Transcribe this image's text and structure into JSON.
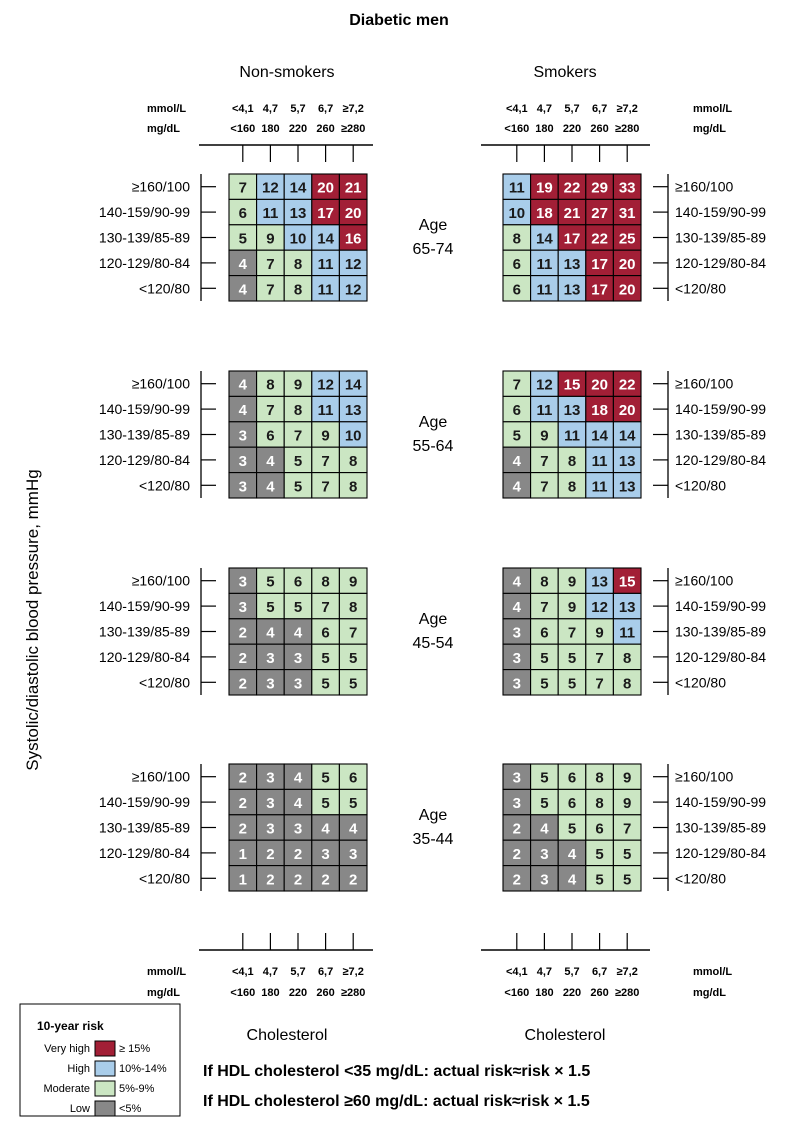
{
  "title": "Diabetic men",
  "y_axis_label": "Systolic/diastolic blood pressure, mmHg",
  "columns": {
    "left_title": "Non-smokers",
    "right_title": "Smokers",
    "bottom_label": "Cholesterol"
  },
  "units": {
    "mmol": "mmol/L",
    "mgdl": "mg/dL"
  },
  "cholesterol_mmol": [
    "<4,1",
    "4,7",
    "5,7",
    "6,7",
    "≥7,2"
  ],
  "cholesterol_mgdl": [
    "<160",
    "180",
    "220",
    "260",
    "≥280"
  ],
  "bp_labels": [
    "≥160/100",
    "140-159/90-99",
    "130-139/85-89",
    "120-129/80-84",
    "<120/80"
  ],
  "legend": {
    "title": "10-year risk",
    "items": [
      {
        "category": "Very high",
        "range": "≥ 15%",
        "color": "#a21f36"
      },
      {
        "category": "High",
        "range": "10%-14%",
        "color": "#a9cdea"
      },
      {
        "category": "Moderate",
        "range": "5%-9%",
        "color": "#cbe6c3"
      },
      {
        "category": "Low",
        "range": "<5%",
        "color": "#888888"
      }
    ]
  },
  "notes": [
    "If HDL cholesterol <35 mg/dL: actual risk≈risk × 1.5",
    "If HDL cholesterol ≥60 mg/dL: actual risk≈risk × 1.5"
  ],
  "chart_data": {
    "type": "heatmap",
    "title": "Diabetic men",
    "ylabel": "Systolic/diastolic blood pressure, mmHg",
    "xlabel": "Cholesterol",
    "x_categories_mmol": [
      "<4,1",
      "4,7",
      "5,7",
      "6,7",
      "≥7,2"
    ],
    "x_categories_mgdl": [
      "<160",
      "180",
      "220",
      "260",
      "≥280"
    ],
    "y_categories": [
      "≥160/100",
      "140-159/90-99",
      "130-139/85-89",
      "120-129/80-84",
      "<120/80"
    ],
    "risk_thresholds_percent": {
      "low_below": 5,
      "moderate": [
        5,
        9
      ],
      "high": [
        10,
        14
      ],
      "very_high_from": 15
    },
    "panels": [
      {
        "age": "65-74",
        "group": "Non-smokers",
        "values": [
          [
            7,
            12,
            14,
            20,
            21
          ],
          [
            6,
            11,
            13,
            17,
            20
          ],
          [
            5,
            9,
            10,
            14,
            16
          ],
          [
            4,
            7,
            8,
            11,
            12
          ],
          [
            4,
            7,
            8,
            11,
            12
          ]
        ]
      },
      {
        "age": "65-74",
        "group": "Smokers",
        "values": [
          [
            11,
            19,
            22,
            29,
            33
          ],
          [
            10,
            18,
            21,
            27,
            31
          ],
          [
            8,
            14,
            17,
            22,
            25
          ],
          [
            6,
            11,
            13,
            17,
            20
          ],
          [
            6,
            11,
            13,
            17,
            20
          ]
        ]
      },
      {
        "age": "55-64",
        "group": "Non-smokers",
        "values": [
          [
            4,
            8,
            9,
            12,
            14
          ],
          [
            4,
            7,
            8,
            11,
            13
          ],
          [
            3,
            6,
            7,
            9,
            10
          ],
          [
            3,
            4,
            5,
            7,
            8
          ],
          [
            3,
            4,
            5,
            7,
            8
          ]
        ]
      },
      {
        "age": "55-64",
        "group": "Smokers",
        "values": [
          [
            7,
            12,
            15,
            20,
            22
          ],
          [
            6,
            11,
            13,
            18,
            20
          ],
          [
            5,
            9,
            11,
            14,
            14
          ],
          [
            4,
            7,
            8,
            11,
            13
          ],
          [
            4,
            7,
            8,
            11,
            13
          ]
        ]
      },
      {
        "age": "45-54",
        "group": "Non-smokers",
        "values": [
          [
            3,
            5,
            6,
            8,
            9
          ],
          [
            3,
            5,
            5,
            7,
            8
          ],
          [
            2,
            4,
            4,
            6,
            7
          ],
          [
            2,
            3,
            3,
            5,
            5
          ],
          [
            2,
            3,
            3,
            5,
            5
          ]
        ]
      },
      {
        "age": "45-54",
        "group": "Smokers",
        "values": [
          [
            4,
            8,
            9,
            13,
            15
          ],
          [
            4,
            7,
            9,
            12,
            13
          ],
          [
            3,
            6,
            7,
            9,
            11
          ],
          [
            3,
            5,
            5,
            7,
            8
          ],
          [
            3,
            5,
            5,
            7,
            8
          ]
        ]
      },
      {
        "age": "35-44",
        "group": "Non-smokers",
        "values": [
          [
            2,
            3,
            4,
            5,
            6
          ],
          [
            2,
            3,
            4,
            5,
            5
          ],
          [
            2,
            3,
            3,
            4,
            4
          ],
          [
            1,
            2,
            2,
            3,
            3
          ],
          [
            1,
            2,
            2,
            2,
            2
          ]
        ]
      },
      {
        "age": "35-44",
        "group": "Smokers",
        "values": [
          [
            3,
            5,
            6,
            8,
            9
          ],
          [
            3,
            5,
            6,
            8,
            9
          ],
          [
            2,
            4,
            5,
            6,
            7
          ],
          [
            2,
            3,
            4,
            5,
            5
          ],
          [
            2,
            3,
            4,
            5,
            5
          ]
        ]
      }
    ]
  }
}
